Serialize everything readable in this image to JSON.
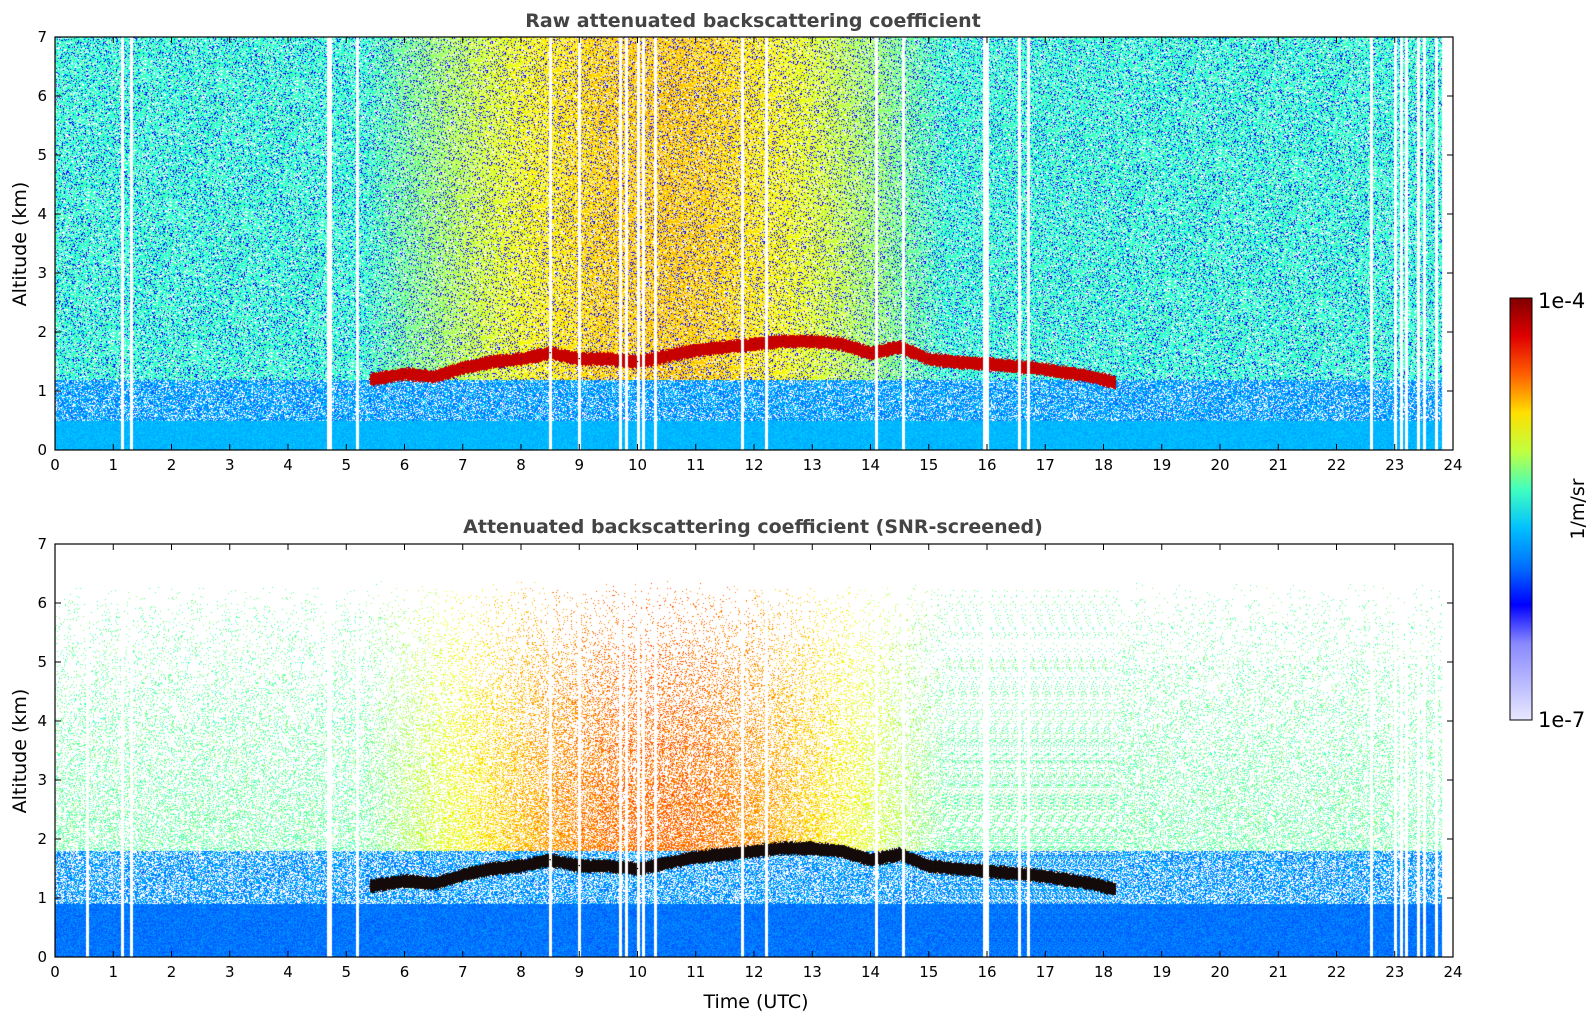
{
  "chart_data": [
    {
      "type": "heatmap",
      "title": "Raw attenuated backscattering coefficient",
      "xlabel": "",
      "ylabel": "Altitude (km)",
      "xlim": [
        0,
        24
      ],
      "ylim": [
        0,
        7
      ],
      "xticks": [
        0,
        1,
        2,
        3,
        4,
        5,
        6,
        7,
        8,
        9,
        10,
        11,
        12,
        13,
        14,
        15,
        16,
        17,
        18,
        19,
        20,
        21,
        22,
        23,
        24
      ],
      "yticks": [
        0,
        1,
        2,
        3,
        4,
        5,
        6,
        7
      ],
      "screened": false,
      "data_end_hour": 23.8,
      "aerosol_layer": [
        {
          "x": 5.4,
          "y": 1.2
        },
        {
          "x": 6.0,
          "y": 1.3
        },
        {
          "x": 6.5,
          "y": 1.25
        },
        {
          "x": 7.0,
          "y": 1.4
        },
        {
          "x": 7.5,
          "y": 1.5
        },
        {
          "x": 8.0,
          "y": 1.55
        },
        {
          "x": 8.5,
          "y": 1.65
        },
        {
          "x": 9.0,
          "y": 1.55
        },
        {
          "x": 9.5,
          "y": 1.55
        },
        {
          "x": 10.0,
          "y": 1.5
        },
        {
          "x": 10.5,
          "y": 1.6
        },
        {
          "x": 11.0,
          "y": 1.7
        },
        {
          "x": 11.5,
          "y": 1.75
        },
        {
          "x": 12.0,
          "y": 1.8
        },
        {
          "x": 12.5,
          "y": 1.85
        },
        {
          "x": 13.0,
          "y": 1.85
        },
        {
          "x": 13.5,
          "y": 1.8
        },
        {
          "x": 14.0,
          "y": 1.65
        },
        {
          "x": 14.5,
          "y": 1.75
        },
        {
          "x": 15.0,
          "y": 1.55
        },
        {
          "x": 15.5,
          "y": 1.5
        },
        {
          "x": 16.8,
          "y": 1.4
        },
        {
          "x": 17.8,
          "y": 1.25
        },
        {
          "x": 18.2,
          "y": 1.15
        }
      ],
      "gaps_hours": [
        1.15,
        1.3,
        4.68,
        4.72,
        5.18,
        8.5,
        9.0,
        9.7,
        9.8,
        10.0,
        10.1,
        10.3,
        11.8,
        12.2,
        14.1,
        14.55,
        15.95,
        16.0,
        16.55,
        16.7,
        22.6,
        23.0,
        23.1,
        23.2,
        23.4,
        23.5,
        23.7
      ]
    },
    {
      "type": "heatmap",
      "title": "Attenuated backscattering coefficient (SNR-screened)",
      "xlabel": "Time (UTC)",
      "ylabel": "Altitude (km)",
      "xlim": [
        0,
        24
      ],
      "ylim": [
        0,
        7
      ],
      "xticks": [
        0,
        1,
        2,
        3,
        4,
        5,
        6,
        7,
        8,
        9,
        10,
        11,
        12,
        13,
        14,
        15,
        16,
        17,
        18,
        19,
        20,
        21,
        22,
        23,
        24
      ],
      "yticks": [
        0,
        1,
        2,
        3,
        4,
        5,
        6,
        7
      ],
      "screened": true,
      "data_end_hour": 23.8,
      "aerosol_layer": [
        {
          "x": 5.4,
          "y": 1.2
        },
        {
          "x": 6.0,
          "y": 1.3
        },
        {
          "x": 6.5,
          "y": 1.25
        },
        {
          "x": 7.0,
          "y": 1.4
        },
        {
          "x": 7.5,
          "y": 1.5
        },
        {
          "x": 8.0,
          "y": 1.55
        },
        {
          "x": 8.5,
          "y": 1.65
        },
        {
          "x": 9.0,
          "y": 1.55
        },
        {
          "x": 9.5,
          "y": 1.55
        },
        {
          "x": 10.0,
          "y": 1.5
        },
        {
          "x": 10.5,
          "y": 1.6
        },
        {
          "x": 11.0,
          "y": 1.7
        },
        {
          "x": 11.5,
          "y": 1.75
        },
        {
          "x": 12.0,
          "y": 1.8
        },
        {
          "x": 12.5,
          "y": 1.85
        },
        {
          "x": 13.0,
          "y": 1.85
        },
        {
          "x": 13.5,
          "y": 1.8
        },
        {
          "x": 14.0,
          "y": 1.65
        },
        {
          "x": 14.5,
          "y": 1.75
        },
        {
          "x": 15.0,
          "y": 1.55
        },
        {
          "x": 15.5,
          "y": 1.5
        },
        {
          "x": 16.8,
          "y": 1.4
        },
        {
          "x": 17.8,
          "y": 1.25
        },
        {
          "x": 18.2,
          "y": 1.15
        }
      ],
      "gaps_hours": [
        0.55,
        1.15,
        1.3,
        4.68,
        4.72,
        5.18,
        8.5,
        9.0,
        9.7,
        9.8,
        10.0,
        10.1,
        10.3,
        11.8,
        12.2,
        14.1,
        14.55,
        15.95,
        16.0,
        16.55,
        16.7,
        22.6,
        23.0,
        23.1,
        23.2,
        23.4,
        23.5,
        23.7
      ]
    }
  ],
  "colorbar": {
    "max_label": "1e-4",
    "min_label": "1e-7",
    "unit_label": "1/m/sr",
    "colormap": "jet",
    "colors": [
      "#e8e8ff",
      "#b8b8ff",
      "#8888ff",
      "#0000ff",
      "#0070ff",
      "#00c0ff",
      "#40ffc0",
      "#c0ff40",
      "#ffe000",
      "#ff6000",
      "#e00000",
      "#800000"
    ]
  }
}
